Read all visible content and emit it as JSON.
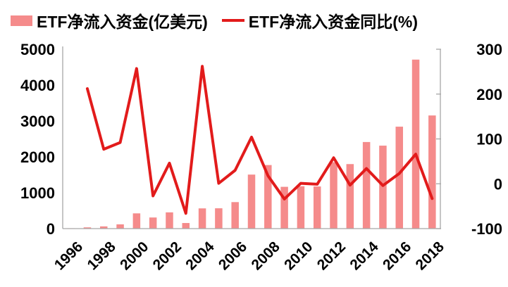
{
  "legend": {
    "items": [
      {
        "label": "ETF净流入资金(亿美元)",
        "swatch": "bar"
      },
      {
        "label": "ETF净流入资金同比(%)",
        "swatch": "line"
      }
    ]
  },
  "chart_data": {
    "type": "bar+line",
    "categories": [
      "1996",
      "1997",
      "1998",
      "1999",
      "2000",
      "2001",
      "2002",
      "2003",
      "2004",
      "2005",
      "2006",
      "2007",
      "2008",
      "2009",
      "2010",
      "2011",
      "2012",
      "2013",
      "2014",
      "2015",
      "2016",
      "2017",
      "2018"
    ],
    "series": [
      {
        "name": "ETF净流入资金(亿美元)",
        "type": "bar",
        "axis": "left",
        "color": "#F58B8B",
        "values": [
          11,
          35,
          62,
          119,
          425,
          310,
          453,
          156,
          564,
          567,
          739,
          1506,
          1772,
          1165,
          1181,
          1175,
          1851,
          1799,
          2414,
          2313,
          2842,
          4711,
          3154
        ]
      },
      {
        "name": "ETF净流入资金同比(%)",
        "type": "line",
        "axis": "right",
        "color": "#E21B1B",
        "values": [
          null,
          212,
          77,
          92,
          257,
          -27,
          46,
          -66,
          262,
          1,
          30,
          104,
          18,
          -34,
          1,
          -1,
          58,
          -3,
          34,
          -4,
          23,
          66,
          -33
        ]
      }
    ],
    "left_axis": {
      "ticks": [
        0,
        1000,
        2000,
        3000,
        4000,
        5000
      ],
      "range": [
        0,
        5000
      ]
    },
    "right_axis": {
      "ticks": [
        -100,
        0,
        100,
        200,
        300
      ],
      "range": [
        -100,
        300
      ]
    },
    "x_axis": {
      "tick_labels": [
        "1996",
        "1998",
        "2000",
        "2002",
        "2004",
        "2006",
        "2008",
        "2010",
        "2012",
        "2014",
        "2016",
        "2018"
      ],
      "label_rotation_deg": -45
    },
    "grid": false,
    "legend_position": "top",
    "colors": {
      "axis_line": "#A6A6A6",
      "text": "#000000",
      "background": "#FFFFFF"
    }
  }
}
